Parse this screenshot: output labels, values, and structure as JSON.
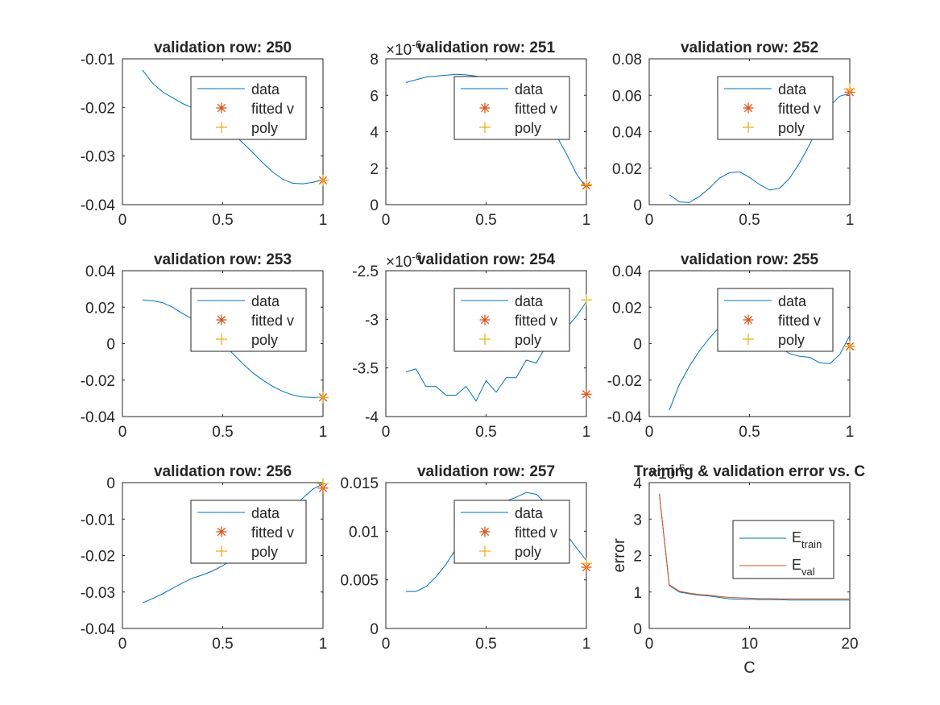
{
  "colors": {
    "data_line": "#0072BD",
    "fitted_marker": "#D95319",
    "poly_marker": "#EDB120",
    "axis": "#262626",
    "background": "#ffffff"
  },
  "chart_data": [
    {
      "type": "line",
      "title": "validation row: 250",
      "xlim": [
        0,
        1
      ],
      "ylim": [
        -0.04,
        -0.01
      ],
      "xticks": [
        0,
        0.5,
        1
      ],
      "xtick_labels": [
        "0",
        "0.5",
        "1"
      ],
      "yticks": [
        -0.04,
        -0.03,
        -0.02,
        -0.01
      ],
      "ytick_labels": [
        "-0.04",
        "-0.03",
        "-0.02",
        "-0.01"
      ],
      "exponent_label": "",
      "legend": [
        "data",
        "fitted v",
        "poly"
      ],
      "series": [
        {
          "name": "data",
          "x": [
            0.1,
            0.15,
            0.2,
            0.25,
            0.3,
            0.35,
            0.4,
            0.45,
            0.5,
            0.55,
            0.6,
            0.65,
            0.7,
            0.75,
            0.8,
            0.85,
            0.9,
            0.95,
            1.0
          ],
          "y": [
            -0.0123,
            -0.015,
            -0.0168,
            -0.018,
            -0.0192,
            -0.0201,
            -0.021,
            -0.0222,
            -0.0237,
            -0.0254,
            -0.0273,
            -0.0293,
            -0.0314,
            -0.0333,
            -0.0348,
            -0.0356,
            -0.0357,
            -0.0354,
            -0.0349
          ]
        },
        {
          "name": "fitted v",
          "x": [
            1.0
          ],
          "y": [
            -0.035
          ]
        },
        {
          "name": "poly",
          "x": [
            1.0
          ],
          "y": [
            -0.035
          ]
        }
      ]
    },
    {
      "type": "line",
      "title": "validation row: 251",
      "xlim": [
        0,
        1
      ],
      "ylim": [
        0,
        8
      ],
      "xticks": [
        0,
        0.5,
        1
      ],
      "xtick_labels": [
        "0",
        "0.5",
        "1"
      ],
      "yticks": [
        0,
        2,
        4,
        6,
        8
      ],
      "ytick_labels": [
        "0",
        "2",
        "4",
        "6",
        "8"
      ],
      "exponent_label": "×10",
      "exponent_power": "-6",
      "legend": [
        "data",
        "fitted v",
        "poly"
      ],
      "series": [
        {
          "name": "data",
          "x": [
            0.1,
            0.15,
            0.2,
            0.25,
            0.3,
            0.35,
            0.4,
            0.45,
            0.5,
            0.55,
            0.6,
            0.65,
            0.7,
            0.75,
            0.8,
            0.85,
            0.9,
            0.95,
            1.0
          ],
          "y": [
            6.7,
            6.85,
            7.0,
            7.05,
            7.1,
            7.15,
            7.12,
            7.05,
            6.95,
            6.85,
            6.7,
            6.5,
            6.2,
            5.6,
            4.6,
            3.8,
            2.8,
            1.7,
            0.9
          ]
        },
        {
          "name": "fitted v",
          "x": [
            1.0
          ],
          "y": [
            1.05
          ]
        },
        {
          "name": "poly",
          "x": [
            1.0
          ],
          "y": [
            1.1
          ]
        }
      ]
    },
    {
      "type": "line",
      "title": "validation row: 252",
      "xlim": [
        0,
        1
      ],
      "ylim": [
        0,
        0.08
      ],
      "xticks": [
        0,
        0.5,
        1
      ],
      "xtick_labels": [
        "0",
        "0.5",
        "1"
      ],
      "yticks": [
        0,
        0.02,
        0.04,
        0.06,
        0.08
      ],
      "ytick_labels": [
        "0",
        "0.02",
        "0.04",
        "0.06",
        "0.08"
      ],
      "exponent_label": "",
      "legend": [
        "data",
        "fitted v",
        "poly"
      ],
      "series": [
        {
          "name": "data",
          "x": [
            0.1,
            0.15,
            0.2,
            0.25,
            0.3,
            0.35,
            0.4,
            0.45,
            0.5,
            0.55,
            0.6,
            0.65,
            0.7,
            0.75,
            0.8,
            0.85,
            0.9,
            0.95,
            1.0
          ],
          "y": [
            0.0055,
            0.0015,
            0.0012,
            0.0045,
            0.009,
            0.0145,
            0.0175,
            0.018,
            0.015,
            0.011,
            0.008,
            0.009,
            0.0145,
            0.023,
            0.033,
            0.045,
            0.054,
            0.0595,
            0.061
          ]
        },
        {
          "name": "fitted v",
          "x": [
            1.0
          ],
          "y": [
            0.0617
          ]
        },
        {
          "name": "poly",
          "x": [
            1.0
          ],
          "y": [
            0.0635
          ]
        }
      ]
    },
    {
      "type": "line",
      "title": "validation row: 253",
      "xlim": [
        0,
        1
      ],
      "ylim": [
        -0.04,
        0.04
      ],
      "xticks": [
        0,
        0.5,
        1
      ],
      "xtick_labels": [
        "0",
        "0.5",
        "1"
      ],
      "yticks": [
        -0.04,
        -0.02,
        0,
        0.02,
        0.04
      ],
      "ytick_labels": [
        "-0.04",
        "-0.02",
        "0",
        "0.02",
        "0.04"
      ],
      "exponent_label": "",
      "legend": [
        "data",
        "fitted v",
        "poly"
      ],
      "series": [
        {
          "name": "data",
          "x": [
            0.1,
            0.15,
            0.2,
            0.25,
            0.3,
            0.35,
            0.4,
            0.45,
            0.5,
            0.55,
            0.6,
            0.65,
            0.7,
            0.75,
            0.8,
            0.85,
            0.9,
            0.95,
            1.0
          ],
          "y": [
            0.024,
            0.0235,
            0.0225,
            0.02,
            0.0165,
            0.0135,
            0.0095,
            0.005,
            0.0,
            -0.0055,
            -0.011,
            -0.016,
            -0.02,
            -0.0235,
            -0.0262,
            -0.0282,
            -0.0293,
            -0.0295,
            -0.0295
          ]
        },
        {
          "name": "fitted v",
          "x": [
            1.0
          ],
          "y": [
            -0.0295
          ]
        },
        {
          "name": "poly",
          "x": [
            1.0
          ],
          "y": [
            -0.0295
          ]
        }
      ]
    },
    {
      "type": "line",
      "title": "validation row: 254",
      "xlim": [
        0,
        1
      ],
      "ylim": [
        -4,
        -2.5
      ],
      "xticks": [
        0,
        0.5,
        1
      ],
      "xtick_labels": [
        "0",
        "0.5",
        "1"
      ],
      "yticks": [
        -4,
        -3.5,
        -3,
        -2.5
      ],
      "ytick_labels": [
        "-4",
        "-3.5",
        "-3",
        "-2.5"
      ],
      "exponent_label": "×10",
      "exponent_power": "-6",
      "legend": [
        "data",
        "fitted v",
        "poly"
      ],
      "series": [
        {
          "name": "data",
          "x": [
            0.1,
            0.15,
            0.2,
            0.25,
            0.3,
            0.35,
            0.4,
            0.45,
            0.5,
            0.55,
            0.6,
            0.65,
            0.7,
            0.75,
            0.8,
            0.85,
            0.9,
            0.95,
            1.0
          ],
          "y": [
            -3.54,
            -3.51,
            -3.69,
            -3.69,
            -3.78,
            -3.78,
            -3.69,
            -3.84,
            -3.63,
            -3.75,
            -3.6,
            -3.6,
            -3.42,
            -3.45,
            -3.27,
            -3.21,
            -3.09,
            -2.97,
            -2.82
          ]
        },
        {
          "name": "fitted v",
          "x": [
            1.0
          ],
          "y": [
            -3.77
          ]
        },
        {
          "name": "poly",
          "x": [
            1.0
          ],
          "y": [
            -2.8
          ]
        }
      ]
    },
    {
      "type": "line",
      "title": "validation row: 255",
      "xlim": [
        0,
        1
      ],
      "ylim": [
        -0.04,
        0.04
      ],
      "xticks": [
        0,
        0.5,
        1
      ],
      "xtick_labels": [
        "0",
        "0.5",
        "1"
      ],
      "yticks": [
        -0.04,
        -0.02,
        0,
        0.02,
        0.04
      ],
      "ytick_labels": [
        "-0.04",
        "-0.02",
        "0",
        "0.02",
        "0.04"
      ],
      "exponent_label": "",
      "legend": [
        "data",
        "fitted v",
        "poly"
      ],
      "series": [
        {
          "name": "data",
          "x": [
            0.1,
            0.15,
            0.2,
            0.25,
            0.3,
            0.35,
            0.4,
            0.45,
            0.5,
            0.55,
            0.6,
            0.65,
            0.7,
            0.75,
            0.8,
            0.85,
            0.9,
            0.95,
            1.0
          ],
          "y": [
            -0.0365,
            -0.0225,
            -0.0125,
            -0.004,
            0.003,
            0.009,
            0.013,
            0.0145,
            0.012,
            0.0075,
            0.002,
            -0.002,
            -0.0055,
            -0.007,
            -0.0075,
            -0.0105,
            -0.011,
            -0.006,
            0.0045
          ]
        },
        {
          "name": "fitted v",
          "x": [
            1.0
          ],
          "y": [
            -0.0015
          ]
        },
        {
          "name": "poly",
          "x": [
            1.0
          ],
          "y": [
            -0.0015
          ]
        }
      ]
    },
    {
      "type": "line",
      "title": "validation row: 256",
      "xlim": [
        0,
        1
      ],
      "ylim": [
        -0.04,
        0
      ],
      "xticks": [
        0,
        0.5,
        1
      ],
      "xtick_labels": [
        "0",
        "0.5",
        "1"
      ],
      "yticks": [
        -0.04,
        -0.03,
        -0.02,
        -0.01,
        0
      ],
      "ytick_labels": [
        "-0.04",
        "-0.03",
        "-0.02",
        "-0.01",
        "0"
      ],
      "exponent_label": "",
      "legend": [
        "data",
        "fitted v",
        "poly"
      ],
      "series": [
        {
          "name": "data",
          "x": [
            0.1,
            0.15,
            0.2,
            0.25,
            0.3,
            0.35,
            0.4,
            0.45,
            0.5,
            0.55,
            0.6,
            0.65,
            0.7,
            0.75,
            0.8,
            0.85,
            0.9,
            0.95,
            1.0
          ],
          "y": [
            -0.033,
            -0.0318,
            -0.0305,
            -0.029,
            -0.0275,
            -0.0262,
            -0.0253,
            -0.0242,
            -0.0228,
            -0.021,
            -0.019,
            -0.0168,
            -0.0145,
            -0.012,
            -0.0095,
            -0.0068,
            -0.0042,
            -0.0018,
            -0.0003
          ]
        },
        {
          "name": "fitted v",
          "x": [
            1.0
          ],
          "y": [
            -0.0015
          ]
        },
        {
          "name": "poly",
          "x": [
            1.0
          ],
          "y": [
            -0.0003
          ]
        }
      ]
    },
    {
      "type": "line",
      "title": "validation row: 257",
      "xlim": [
        0,
        1
      ],
      "ylim": [
        0,
        0.015
      ],
      "xticks": [
        0,
        0.5,
        1
      ],
      "xtick_labels": [
        "0",
        "0.5",
        "1"
      ],
      "yticks": [
        0,
        0.005,
        0.01,
        0.015
      ],
      "ytick_labels": [
        "0",
        "0.005",
        "0.01",
        "0.015"
      ],
      "exponent_label": "",
      "legend": [
        "data",
        "fitted v",
        "poly"
      ],
      "series": [
        {
          "name": "data",
          "x": [
            0.1,
            0.15,
            0.2,
            0.25,
            0.3,
            0.35,
            0.4,
            0.45,
            0.5,
            0.55,
            0.6,
            0.65,
            0.7,
            0.75,
            0.8,
            0.85,
            0.9,
            0.95,
            1.0
          ],
          "y": [
            0.0038,
            0.0038,
            0.0043,
            0.0053,
            0.0066,
            0.0082,
            0.0096,
            0.0108,
            0.0118,
            0.0126,
            0.0131,
            0.0135,
            0.014,
            0.0138,
            0.0128,
            0.0113,
            0.0097,
            0.0083,
            0.007
          ]
        },
        {
          "name": "fitted v",
          "x": [
            1.0
          ],
          "y": [
            0.0063
          ]
        },
        {
          "name": "poly",
          "x": [
            1.0
          ],
          "y": [
            0.0067
          ]
        }
      ]
    },
    {
      "type": "line",
      "title": "Training & validation error vs. C",
      "xlabel": "C",
      "ylabel": "error",
      "xlim": [
        0,
        20
      ],
      "ylim": [
        0,
        4
      ],
      "xticks": [
        0,
        10,
        20
      ],
      "xtick_labels": [
        "0",
        "10",
        "20"
      ],
      "yticks": [
        0,
        1,
        2,
        3,
        4
      ],
      "ytick_labels": [
        "0",
        "1",
        "2",
        "3",
        "4"
      ],
      "exponent_label": "×10",
      "exponent_power": "-5",
      "legend": [
        "E_train",
        "E_val"
      ],
      "series": [
        {
          "name": "E_train",
          "x": [
            1,
            2,
            3,
            4,
            5,
            6,
            7,
            8,
            9,
            10,
            11,
            12,
            13,
            14,
            15,
            16,
            17,
            18,
            19,
            20
          ],
          "y": [
            3.7,
            1.18,
            1.0,
            0.95,
            0.91,
            0.89,
            0.85,
            0.81,
            0.8,
            0.8,
            0.79,
            0.79,
            0.79,
            0.78,
            0.78,
            0.78,
            0.78,
            0.78,
            0.78,
            0.78
          ]
        },
        {
          "name": "E_val",
          "x": [
            1,
            2,
            3,
            4,
            5,
            6,
            7,
            8,
            9,
            10,
            11,
            12,
            13,
            14,
            15,
            16,
            17,
            18,
            19,
            20
          ],
          "y": [
            3.7,
            1.2,
            1.02,
            0.97,
            0.93,
            0.91,
            0.88,
            0.85,
            0.84,
            0.83,
            0.82,
            0.82,
            0.81,
            0.81,
            0.81,
            0.81,
            0.81,
            0.81,
            0.81,
            0.81
          ]
        }
      ]
    }
  ]
}
